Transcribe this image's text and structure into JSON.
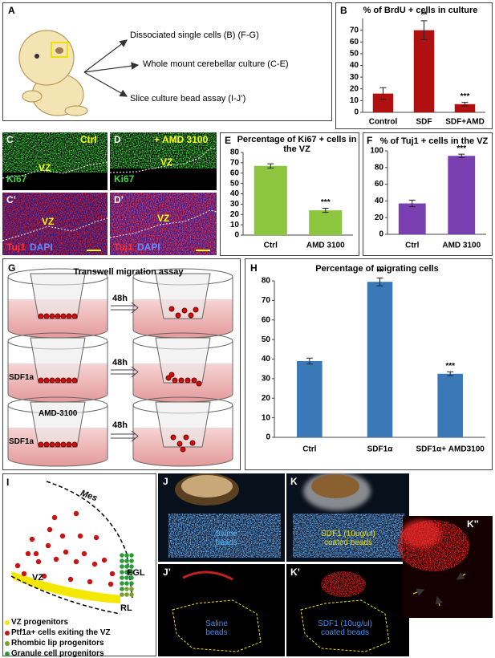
{
  "panel_a": {
    "label": "A",
    "routes": [
      "Dissociated single cells (B) (F-G)",
      "Whole mount cerebellar culture (C-E)",
      "Slice culture bead assay (I-J’)"
    ]
  },
  "panel_c": {
    "label": "C",
    "condition": "Ctrl",
    "marker": "Ki67",
    "region": "VZ"
  },
  "panel_d": {
    "label": "D",
    "condition": "+ AMD 3100",
    "marker": "Ki67",
    "region": "VZ"
  },
  "panel_c2": {
    "label": "C’",
    "markers": [
      "Tuj1",
      "DAPI"
    ],
    "region": "VZ"
  },
  "panel_d2": {
    "label": "D’",
    "markers": [
      "Tuj1",
      "DAPI"
    ],
    "region": "VZ"
  },
  "panel_g": {
    "label": "G",
    "title": "Transwell migration assay",
    "rows": [
      {
        "time": "48h"
      },
      {
        "time": "48h",
        "chemokine": "SDF1a"
      },
      {
        "time": "48h",
        "inhibitor": "AMD-3100",
        "chemokine": "SDF1a"
      }
    ]
  },
  "panel_i": {
    "label": "I",
    "regions": [
      "Mes",
      "VZ",
      "EGL",
      "RL"
    ],
    "legend": [
      "VZ progenitors",
      "Ptf1a+ cells exiting the VZ",
      "Rhombic lip progenitors",
      "Granule cell progenitors"
    ]
  },
  "panel_j": {
    "label": "J",
    "beads": "Saline beads"
  },
  "panel_k": {
    "label": "K",
    "beads": "SDF1 (10ug/ul) coated beads"
  },
  "panel_j2": {
    "label": "J’",
    "beads": "Saline beads"
  },
  "panel_k2": {
    "label": "K’",
    "beads": "SDF1 (10ug/ul) coated beads"
  },
  "panel_k3": {
    "label": "K’’"
  },
  "chart_data": [
    {
      "type": "bar",
      "label": "B",
      "title": "% of BrdU + cells in culture",
      "categories": [
        "Control",
        "SDF",
        "SDF+AMD"
      ],
      "values": [
        16,
        70,
        7
      ],
      "errors": [
        5,
        8,
        1.5
      ],
      "annotations": [
        null,
        "**",
        "***"
      ],
      "color": "#b01010",
      "ylim": [
        0,
        80
      ],
      "yticks": [
        0,
        10,
        20,
        30,
        40,
        50,
        60,
        70
      ]
    },
    {
      "type": "bar",
      "label": "E",
      "title": "Percentage of Ki67 + cells in the VZ",
      "categories": [
        "Ctrl",
        "AMD 3100"
      ],
      "values": [
        67,
        24
      ],
      "errors": [
        2,
        2
      ],
      "annotations": [
        null,
        "***"
      ],
      "color": "#8cc63f",
      "ylim": [
        0,
        80
      ],
      "yticks": [
        0,
        10,
        20,
        30,
        40,
        50,
        60,
        70,
        80
      ]
    },
    {
      "type": "bar",
      "label": "F",
      "title": "% of Tuj1 + cells in the VZ",
      "categories": [
        "Ctrl",
        "AMD 3100"
      ],
      "values": [
        37,
        94
      ],
      "errors": [
        4,
        2
      ],
      "annotations": [
        null,
        "***"
      ],
      "color": "#7a3fb0",
      "ylim": [
        0,
        100
      ],
      "yticks": [
        0,
        20,
        40,
        60,
        80,
        100
      ]
    },
    {
      "type": "bar",
      "label": "H",
      "title": "Percentage of migrating cells",
      "categories": [
        "Ctrl",
        "SDF1α",
        "SDF1α+ AMD3100"
      ],
      "values": [
        39,
        79.5,
        32.5
      ],
      "errors": [
        1.5,
        2,
        1
      ],
      "annotations": [
        null,
        "**",
        "***"
      ],
      "color": "#3a78b8",
      "ylim": [
        0,
        80
      ],
      "yticks": [
        0,
        10,
        20,
        30,
        40,
        50,
        60,
        70,
        80
      ]
    }
  ]
}
